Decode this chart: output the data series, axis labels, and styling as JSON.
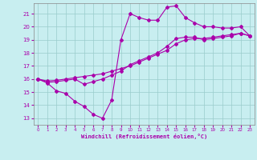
{
  "xlabel": "Windchill (Refroidissement éolien,°C)",
  "xlim": [
    -0.5,
    23.5
  ],
  "ylim": [
    12.5,
    21.8
  ],
  "xticks": [
    0,
    1,
    2,
    3,
    4,
    5,
    6,
    7,
    8,
    9,
    10,
    11,
    12,
    13,
    14,
    15,
    16,
    17,
    18,
    19,
    20,
    21,
    22,
    23
  ],
  "yticks": [
    13,
    14,
    15,
    16,
    17,
    18,
    19,
    20,
    21
  ],
  "background_color": "#c8eef0",
  "line_color": "#aa00aa",
  "grid_color": "#99cccc",
  "line1_x": [
    0,
    1,
    2,
    3,
    4,
    5,
    6,
    7,
    8,
    9,
    10,
    11,
    12,
    13,
    14,
    15,
    16,
    17,
    18,
    19,
    20,
    21,
    22,
    23
  ],
  "line1_y": [
    16.0,
    15.7,
    15.1,
    14.9,
    14.3,
    13.9,
    13.3,
    13.0,
    14.4,
    19.0,
    21.0,
    20.7,
    20.5,
    20.5,
    21.5,
    21.6,
    20.7,
    20.3,
    20.0,
    20.0,
    19.9,
    19.9,
    20.0,
    19.3
  ],
  "line2_x": [
    0,
    1,
    2,
    3,
    4,
    5,
    6,
    7,
    8,
    9,
    10,
    11,
    12,
    13,
    14,
    15,
    16,
    17,
    18,
    19,
    20,
    21,
    22,
    23
  ],
  "line2_y": [
    16.0,
    15.85,
    15.9,
    16.0,
    16.1,
    16.2,
    16.3,
    16.4,
    16.6,
    16.8,
    17.0,
    17.3,
    17.6,
    17.9,
    18.2,
    18.7,
    19.0,
    19.1,
    19.1,
    19.2,
    19.3,
    19.4,
    19.5,
    19.3
  ],
  "line3_x": [
    0,
    1,
    2,
    3,
    4,
    5,
    6,
    7,
    8,
    9,
    10,
    11,
    12,
    13,
    14,
    15,
    16,
    17,
    18,
    19,
    20,
    21,
    22,
    23
  ],
  "line3_y": [
    16.0,
    15.75,
    15.8,
    15.9,
    16.0,
    15.6,
    15.8,
    16.0,
    16.3,
    16.6,
    17.1,
    17.4,
    17.7,
    18.0,
    18.5,
    19.1,
    19.2,
    19.2,
    19.0,
    19.1,
    19.2,
    19.3,
    19.5,
    19.3
  ]
}
